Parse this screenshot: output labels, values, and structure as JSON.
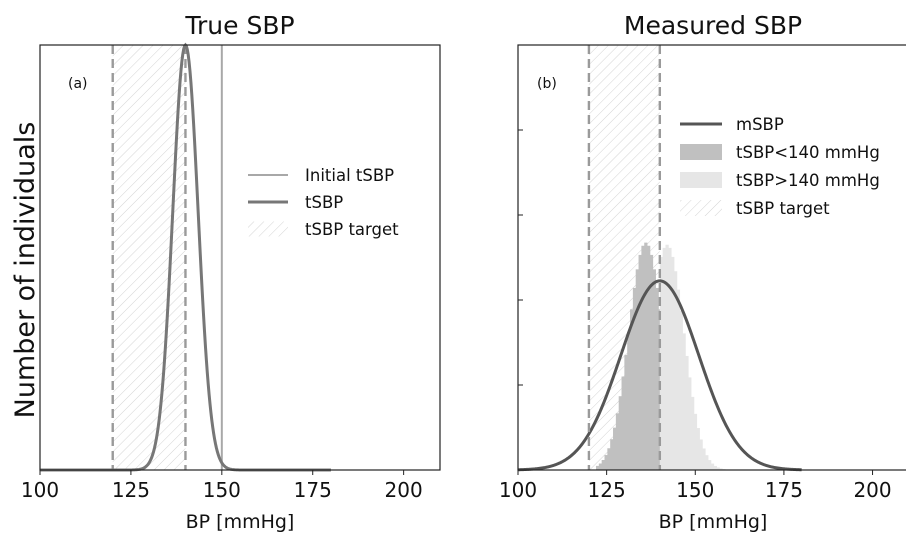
{
  "figure": {
    "ylabel": "Number of individuals"
  },
  "chart_data": [
    {
      "type": "line",
      "panel_label": "(a)",
      "title": "True SBP",
      "xlabel": "BP [mmHg]",
      "xlim": [
        100,
        210
      ],
      "xticks": [
        100,
        125,
        150,
        175,
        200
      ],
      "ylim": [
        0,
        1.0
      ],
      "yticks_labeled": false,
      "legend_position": "center-right",
      "vlines": [
        {
          "x": 120,
          "style": "dashed",
          "color": "#9a9a9a"
        },
        {
          "x": 140,
          "style": "dashed",
          "color": "#9a9a9a"
        }
      ],
      "series": [
        {
          "name": "Initial tSBP",
          "kind": "vline",
          "x": 150,
          "color": "#a8a8a8"
        },
        {
          "name": "tSBP",
          "kind": "gaussian",
          "mean": 140,
          "sd": 3.5,
          "peak": 1.0,
          "x_range": [
            100,
            180
          ],
          "color": "#777777"
        },
        {
          "name": "tSBP target",
          "kind": "band",
          "x_range": [
            120,
            140
          ],
          "color": "#c8c8c8"
        }
      ]
    },
    {
      "type": "area",
      "panel_label": "(b)",
      "title": "Measured SBP",
      "xlabel": "BP [mmHg]",
      "xlim": [
        100,
        210
      ],
      "xticks": [
        100,
        125,
        150,
        175,
        200
      ],
      "ylim": [
        0,
        1.0
      ],
      "yticks_labeled": false,
      "legend_position": "upper-right",
      "vlines": [
        {
          "x": 120,
          "style": "dashed",
          "color": "#9a9a9a"
        },
        {
          "x": 140,
          "style": "dashed",
          "color": "#9a9a9a"
        }
      ],
      "series": [
        {
          "name": "mSBP",
          "kind": "gaussian",
          "mean": 140,
          "sd": 11,
          "peak": 0.445,
          "x_range": [
            100,
            180
          ],
          "color": "#555555"
        },
        {
          "name": "tSBP<140 mmHg",
          "kind": "hist",
          "mean": 136,
          "sd": 4.8,
          "peak": 0.535,
          "x_range": [
            122,
            140
          ],
          "color": "#c0c0c0"
        },
        {
          "name": "tSBP>140 mmHg",
          "kind": "hist",
          "mean": 142,
          "sd": 4.8,
          "peak": 0.53,
          "x_range": [
            140,
            160
          ],
          "color": "#e6e6e6"
        },
        {
          "name": "tSBP target",
          "kind": "band",
          "x_range": [
            120,
            140
          ],
          "color": "#c8c8c8"
        }
      ]
    }
  ]
}
